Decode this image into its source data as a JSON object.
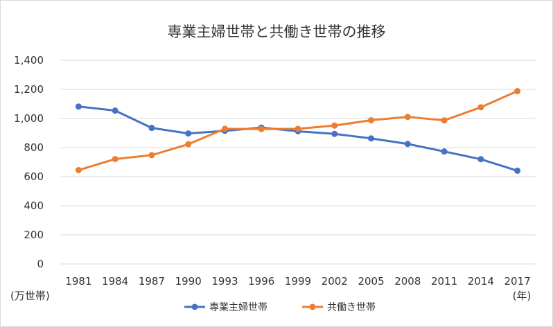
{
  "chart_data": {
    "type": "line",
    "title": "専業主婦世帯と共働き世帯の推移",
    "ylabel": "(万世帯)",
    "xlabel": "(年)",
    "categories": [
      "1981",
      "1984",
      "1987",
      "1990",
      "1993",
      "1996",
      "1999",
      "2002",
      "2005",
      "2008",
      "2011",
      "2014",
      "2017"
    ],
    "ylim": [
      0,
      1400
    ],
    "yticks": [
      "0",
      "200",
      "400",
      "600",
      "800",
      "1,000",
      "1,200",
      "1,400"
    ],
    "ytick_values": [
      0,
      200,
      400,
      600,
      800,
      1000,
      1200,
      1400
    ],
    "grid": true,
    "legend_position": "bottom",
    "series": [
      {
        "name": "専業主婦世帯",
        "color": "#4472C4",
        "values": [
          1082,
          1054,
          935,
          897,
          915,
          937,
          912,
          894,
          863,
          825,
          773,
          720,
          641
        ]
      },
      {
        "name": "共働き世帯",
        "color": "#ED7D31",
        "values": [
          645,
          721,
          748,
          823,
          929,
          927,
          929,
          951,
          988,
          1011,
          987,
          1077,
          1188
        ]
      }
    ]
  }
}
